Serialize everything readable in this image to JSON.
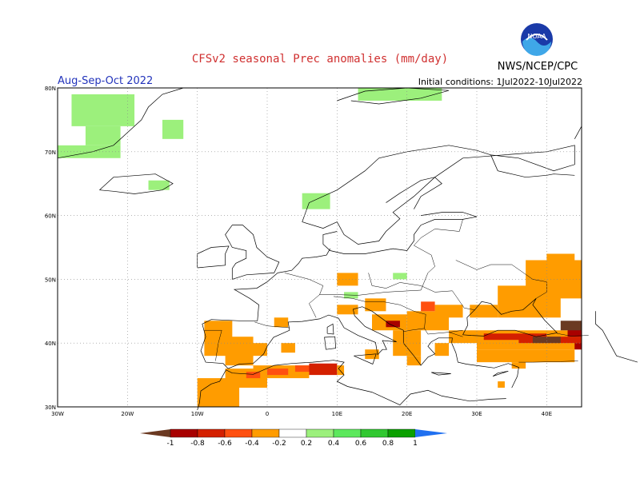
{
  "header": {
    "title": "CFSv2 seasonal Prec anomalies (mm/day)",
    "period": "Aug-Sep-Oct 2022",
    "initial_conditions": "Initial conditions: 1Jul2022-10Jul2022",
    "organization": "NWS/NCEP/CPC",
    "logo_text": "NOAA",
    "logo_icon": "noaa-logo-icon"
  },
  "axes": {
    "lon_ticks": [
      "30W",
      "20W",
      "10W",
      "0",
      "10E",
      "20E",
      "30E",
      "40E"
    ],
    "lat_ticks": [
      "80N",
      "70N",
      "60N",
      "50N",
      "40N",
      "30N"
    ],
    "lon_range": [
      -30,
      45
    ],
    "lat_range": [
      30,
      80
    ],
    "grid": "dotted"
  },
  "legend": {
    "tick_labels": [
      "-1",
      "-0.8",
      "-0.6",
      "-0.4",
      "-0.2",
      "0.2",
      "0.4",
      "0.6",
      "0.8",
      "1"
    ],
    "colors": [
      "#6b3a22",
      "#a80000",
      "#d42000",
      "#ff5010",
      "#ff9c00",
      "#ffffff",
      "#9cf07c",
      "#5ce85c",
      "#30c830",
      "#0aa000",
      "#2070f0"
    ]
  },
  "anomaly_regions": [
    {
      "region": "Iberia",
      "sign": "negative",
      "level": "-0.2"
    },
    {
      "region": "Morocco/Algeria",
      "sign": "negative",
      "level": "-0.2 to -0.4"
    },
    {
      "region": "Tunisia",
      "sign": "negative",
      "level": "-0.4 to -0.6"
    },
    {
      "region": "Balkans",
      "sign": "negative",
      "level": "-0.2 to -0.6"
    },
    {
      "region": "Turkey/Caucasus",
      "sign": "negative",
      "level": "-0.2 to -1"
    },
    {
      "region": "Greenland",
      "sign": "positive",
      "level": "0.2"
    },
    {
      "region": "Norway coast",
      "sign": "positive",
      "level": "0.2"
    }
  ]
}
